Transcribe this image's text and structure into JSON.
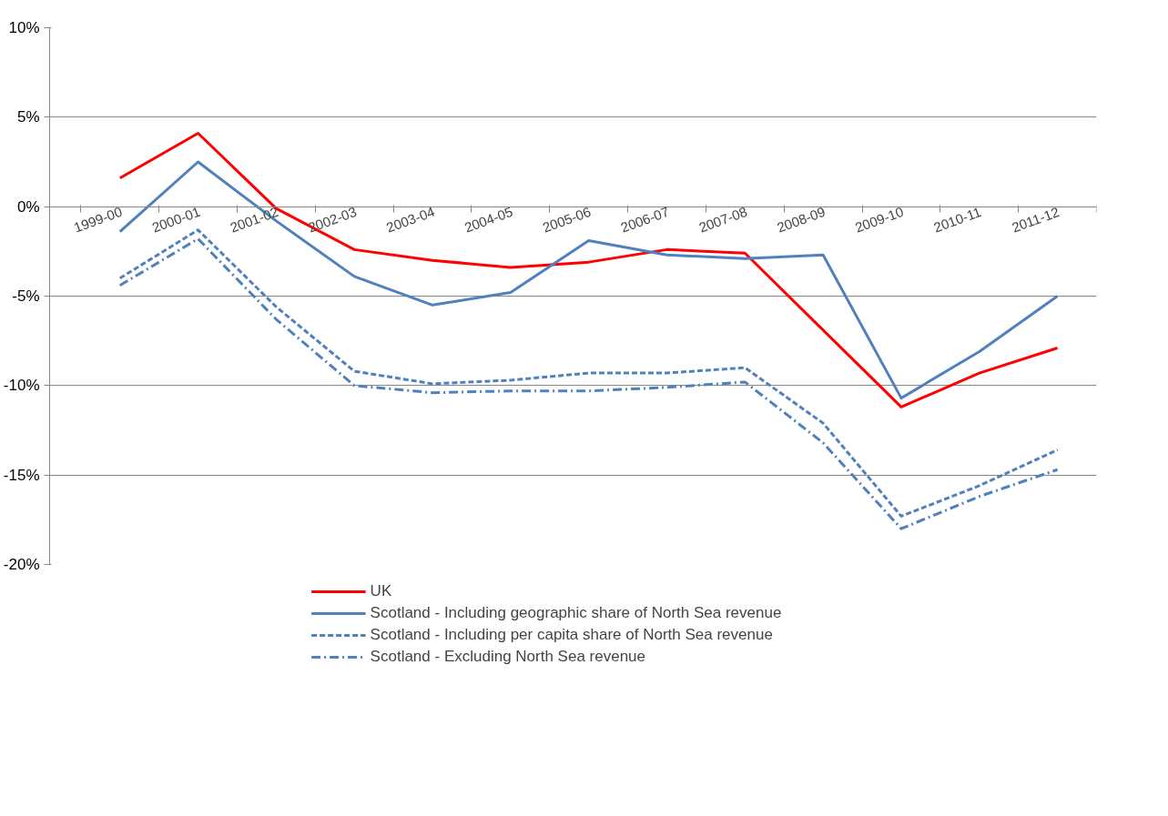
{
  "chart_data": {
    "type": "line",
    "categories": [
      "1999-00",
      "2000-01",
      "2001-02",
      "2002-03",
      "2003-04",
      "2004-05",
      "2005-06",
      "2006-07",
      "2007-08",
      "2008-09",
      "2009-10",
      "2010-11",
      "2011-12"
    ],
    "ylim": [
      -20,
      10
    ],
    "yticks": [
      {
        "value": -20,
        "label": "-20%"
      },
      {
        "value": -15,
        "label": "-15%"
      },
      {
        "value": -10,
        "label": "-10%"
      },
      {
        "value": -5,
        "label": "-5%"
      },
      {
        "value": 0,
        "label": "0%"
      },
      {
        "value": 5,
        "label": "5%"
      },
      {
        "value": 10,
        "label": "10%"
      }
    ],
    "grid": "y",
    "legend": "bottom",
    "marker": "none",
    "series": [
      {
        "name": "UK",
        "color": "#ff0000",
        "line_style": "solid",
        "values": [
          1.6,
          4.1,
          -0.1,
          -2.4,
          -3.0,
          -3.4,
          -3.1,
          -2.4,
          -2.6,
          -6.9,
          -11.2,
          -9.3,
          -7.9
        ]
      },
      {
        "name": "Scotland - Including geographic share of North Sea revenue",
        "color": "#4f81bd",
        "line_style": "solid",
        "values": [
          -1.4,
          2.5,
          -0.8,
          -3.9,
          -5.5,
          -4.8,
          -1.9,
          -2.7,
          -2.9,
          -2.7,
          -10.7,
          -8.1,
          -5.0
        ]
      },
      {
        "name": "Scotland - Including per capita share of North Sea revenue",
        "color": "#4f81bd",
        "line_style": "dashed",
        "values": [
          -4.0,
          -1.3,
          -5.6,
          -9.2,
          -9.9,
          -9.7,
          -9.3,
          -9.3,
          -9.0,
          -12.1,
          -17.3,
          -15.6,
          -13.6
        ]
      },
      {
        "name": "Scotland - Excluding North Sea revenue",
        "color": "#4f81bd",
        "line_style": "dashdot",
        "values": [
          -4.4,
          -1.8,
          -6.3,
          -10.0,
          -10.4,
          -10.3,
          -10.3,
          -10.1,
          -9.8,
          -13.2,
          -18.0,
          -16.2,
          -14.7
        ]
      }
    ]
  }
}
